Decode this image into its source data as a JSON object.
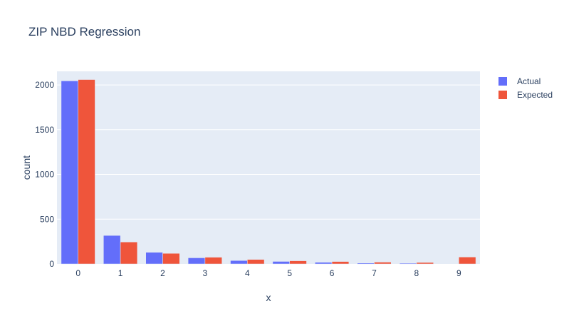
{
  "chart_data": {
    "type": "bar",
    "title": "ZIP NBD Regression",
    "xlabel": "x",
    "ylabel": "count",
    "categories": [
      "0",
      "1",
      "2",
      "3",
      "4",
      "5",
      "6",
      "7",
      "8",
      "9"
    ],
    "series": [
      {
        "name": "Actual",
        "color": "#636efa",
        "values": [
          2045,
          318,
          130,
          68,
          38,
          28,
          18,
          10,
          8,
          0
        ]
      },
      {
        "name": "Expected",
        "color": "#ef553b",
        "values": [
          2060,
          245,
          118,
          75,
          50,
          35,
          27,
          20,
          16,
          77
        ]
      }
    ],
    "ylim": [
      0,
      2152
    ],
    "yticks": [
      0,
      500,
      1000,
      1500,
      2000
    ],
    "grid": true,
    "legend_position": "top-right",
    "plot_background": "#e5ecf6"
  }
}
